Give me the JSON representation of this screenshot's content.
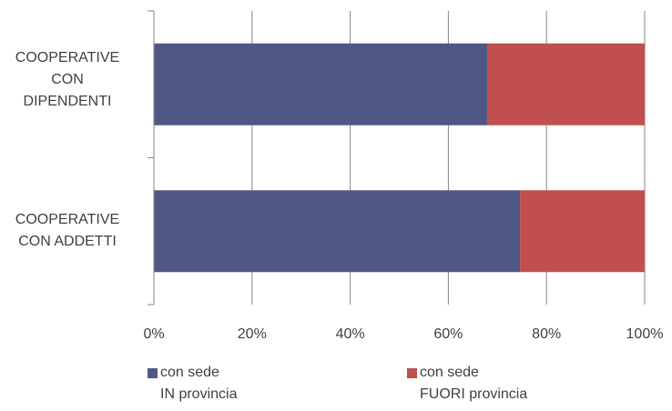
{
  "chart_data": {
    "type": "bar",
    "orientation": "horizontal",
    "stacked": "percent",
    "categories": [
      "COOPERATIVE CON DIPENDENTI",
      "COOPERATIVE CON ADDETTI"
    ],
    "category_lines": [
      [
        "COOPERATIVE",
        "CON",
        "DIPENDENTI"
      ],
      [
        "COOPERATIVE",
        "CON ADDETTI"
      ]
    ],
    "series": [
      {
        "name": "con sede IN provincia",
        "name_lines": [
          "con sede",
          "IN provincia"
        ],
        "color": "#4f5885",
        "values": [
          67.9,
          74.6
        ]
      },
      {
        "name": "con sede FUORI provincia",
        "name_lines": [
          "con sede",
          "FUORI provincia"
        ],
        "color": "#c0504d",
        "values": [
          32.1,
          25.4
        ]
      }
    ],
    "xlim": [
      0,
      100
    ],
    "xticks": [
      "0%",
      "20%",
      "40%",
      "60%",
      "80%",
      "100%"
    ],
    "grid": true,
    "legend_position": "bottom"
  }
}
